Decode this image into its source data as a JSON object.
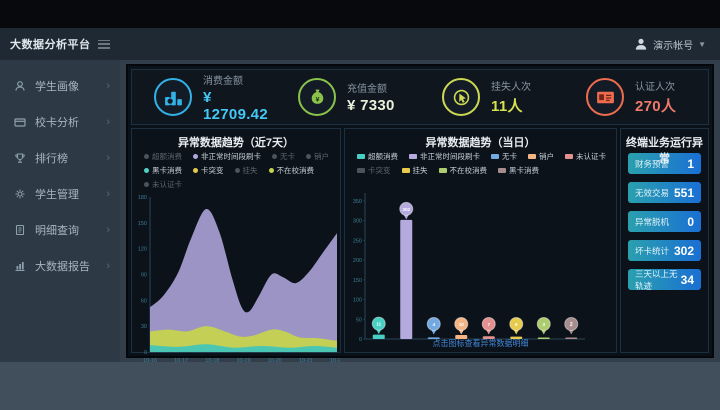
{
  "header": {
    "app_title": "大数据分析平台",
    "user_name": "演示帐号"
  },
  "sidebar": {
    "items": [
      {
        "label": "学生画像",
        "icon": "user"
      },
      {
        "label": "校卡分析",
        "icon": "card"
      },
      {
        "label": "排行榜",
        "icon": "trophy"
      },
      {
        "label": "学生管理",
        "icon": "gear"
      },
      {
        "label": "明细查询",
        "icon": "doc"
      },
      {
        "label": "大数据报告",
        "icon": "report"
      }
    ]
  },
  "kpis": [
    {
      "label": "消费金额",
      "value": "¥ 12709.42",
      "accent": "#33b2e8",
      "value_color": "#45c8f5",
      "icon": "coins"
    },
    {
      "label": "充值金额",
      "value": "¥ 7330",
      "accent": "#8bc34a",
      "value_color": "#e9f0dc",
      "icon": "moneybag"
    },
    {
      "label": "挂失人次",
      "value": "11人",
      "accent": "#cdd952",
      "value_color": "#d7e34f",
      "icon": "hand-click"
    },
    {
      "label": "认证人次",
      "value": "270人",
      "accent": "#ef6c4f",
      "value_color": "#f0796a",
      "icon": "id-card"
    }
  ],
  "right_panel": {
    "title": "终端业务运行异常",
    "rows": [
      {
        "label": "财务预警",
        "value": "1"
      },
      {
        "label": "无效交易",
        "value": "551"
      },
      {
        "label": "异常脱机",
        "value": "0"
      },
      {
        "label": "坏卡统计",
        "value": "302"
      },
      {
        "label": "三天以上无轨迹",
        "value": "34"
      }
    ]
  },
  "chart_data": [
    {
      "id": "trend-7d",
      "type": "area",
      "title": "异常数据趋势（近7天）",
      "x_labels": [
        "10-16",
        "10-17",
        "10-18",
        "10-19",
        "10-20",
        "10-21",
        "10-22"
      ],
      "ylim": [
        0,
        180
      ],
      "yticks": [
        0,
        30,
        60,
        90,
        120,
        150,
        180
      ],
      "legend_rows": [
        [
          {
            "label": "超额消费",
            "active": false,
            "color": "#4a545c"
          },
          {
            "label": "非正常时间段刷卡",
            "active": true,
            "color": "#b2a7de"
          },
          {
            "label": "无卡",
            "active": false,
            "color": "#4a545c"
          },
          {
            "label": "销户",
            "active": false,
            "color": "#4a545c"
          }
        ],
        [
          {
            "label": "黑卡消费",
            "active": true,
            "color": "#4fd0c5"
          },
          {
            "label": "卡突变",
            "active": true,
            "color": "#e4c94a"
          },
          {
            "label": "挂失",
            "active": false,
            "color": "#4a545c"
          },
          {
            "label": "不在校消费",
            "active": true,
            "color": "#c5d24f"
          }
        ],
        [
          {
            "label": "未认证卡",
            "active": false,
            "color": "#4a545c"
          }
        ]
      ],
      "series": [
        {
          "name": "非正常时间段刷卡",
          "color": "#a89fd2",
          "points": [
            [
              0,
              52
            ],
            [
              7,
              65
            ],
            [
              15,
              92
            ],
            [
              22,
              132
            ],
            [
              30,
              166
            ],
            [
              37,
              140
            ],
            [
              44,
              85
            ],
            [
              49,
              52
            ],
            [
              53,
              47
            ],
            [
              58,
              64
            ],
            [
              65,
              90
            ],
            [
              71,
              87
            ],
            [
              78,
              80
            ],
            [
              85,
              93
            ],
            [
              92,
              114
            ],
            [
              100,
              138
            ]
          ]
        },
        {
          "name": "不在校消费",
          "color": "#c5d24f",
          "points": [
            [
              0,
              24
            ],
            [
              10,
              26
            ],
            [
              20,
              24
            ],
            [
              30,
              30
            ],
            [
              40,
              24
            ],
            [
              48,
              18
            ],
            [
              55,
              19
            ],
            [
              65,
              26
            ],
            [
              72,
              24
            ],
            [
              80,
              17
            ],
            [
              90,
              16
            ],
            [
              100,
              13
            ]
          ]
        },
        {
          "name": "黑卡消费",
          "color": "#45c5b8",
          "points": [
            [
              0,
              8
            ],
            [
              15,
              6
            ],
            [
              30,
              9
            ],
            [
              45,
              5
            ],
            [
              60,
              7
            ],
            [
              75,
              5
            ],
            [
              88,
              7
            ],
            [
              100,
              5
            ]
          ]
        }
      ]
    },
    {
      "id": "trend-today",
      "type": "bar",
      "title": "异常数据趋势（当日）",
      "categories": [
        "超额消费",
        "非正常时间段刷卡",
        "无卡",
        "销户",
        "未认证卡",
        "挂失",
        "不在校消费",
        "黑卡消费"
      ],
      "values": [
        11,
        302,
        4,
        10,
        7,
        6,
        3,
        2
      ],
      "colors": [
        "#46cfc2",
        "#b4aade",
        "#72a9e0",
        "#f4b484",
        "#e49090",
        "#e6cb4d",
        "#accd6d",
        "#a68c8c"
      ],
      "ylim": [
        0,
        350
      ],
      "yticks": [
        0,
        50,
        100,
        150,
        200,
        250,
        300,
        350
      ],
      "legend_rows": [
        [
          {
            "label": "超额消费",
            "active": true,
            "color": "#46cfc2"
          },
          {
            "label": "非正常时间段刷卡",
            "active": true,
            "color": "#b4aade"
          },
          {
            "label": "无卡",
            "active": true,
            "color": "#72a9e0"
          },
          {
            "label": "销户",
            "active": true,
            "color": "#f4b484"
          },
          {
            "label": "未认证卡",
            "active": true,
            "color": "#e49090"
          }
        ],
        [
          {
            "label": "卡突变",
            "active": false,
            "color": "#8a9097"
          },
          {
            "label": "挂失",
            "active": true,
            "color": "#e6cb4d"
          },
          {
            "label": "不在校消费",
            "active": true,
            "color": "#accd6d"
          },
          {
            "label": "黑卡消费",
            "active": true,
            "color": "#a68c8c"
          }
        ]
      ],
      "footer_link": "点击图标查看异常数据明细"
    }
  ]
}
